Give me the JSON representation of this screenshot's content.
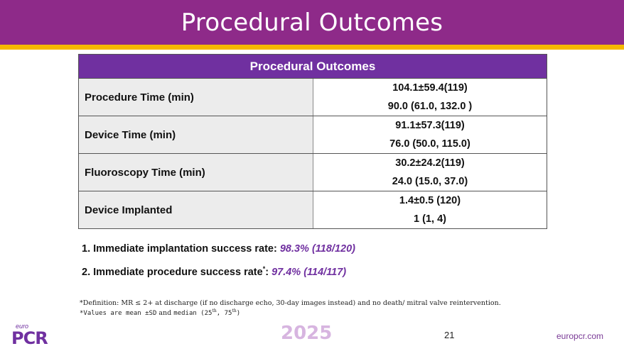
{
  "header": {
    "title": "Procedural Outcomes"
  },
  "table": {
    "title": "Procedural Outcomes",
    "rows": [
      {
        "label": "Procedure Time (min)",
        "values": [
          "104.1±59.4(119)",
          "90.0 (61.0, 132.0 )"
        ]
      },
      {
        "label": "Device Time (min)",
        "values": [
          "91.1±57.3(119)",
          "76.0 (50.0, 115.0)"
        ]
      },
      {
        "label": "Fluoroscopy Time (min)",
        "values": [
          "30.2±24.2(119)",
          "24.0 (15.0, 37.0)"
        ]
      },
      {
        "label": "Device Implanted",
        "values": [
          "1.4±0.5 (120)",
          "1 (1, 4)"
        ]
      }
    ]
  },
  "outcomes": [
    {
      "num": "1.",
      "text": "Immediate implantation success rate:",
      "sup": "",
      "value": "98.3% (118/120)"
    },
    {
      "num": "2.",
      "text": "Immediate procedure success rate",
      "sup": "*",
      "colon": ":",
      "value": "97.4% (114/117)"
    }
  ],
  "footnotes": {
    "line1": "*Definition: MR ≤ 2+ at discharge (if no discharge echo, 30-day images instead) and  no death/ mitral valve reintervention.",
    "line2_a": "*Values are mean ±SD",
    "line2_b": " and ",
    "line2_c": "median (25",
    "line2_sup1": "th",
    "line2_d": ", 75",
    "line2_sup2": "th",
    "line2_e": ")"
  },
  "footer": {
    "logo_small": "euro",
    "logo_main": "PCR",
    "year": "2025",
    "page_number": "21",
    "site": "europcr.com"
  },
  "colors": {
    "header": "#8e2a89",
    "stripe": "#f5b800",
    "table_head": "#7030a0",
    "accent": "#7030a0"
  }
}
